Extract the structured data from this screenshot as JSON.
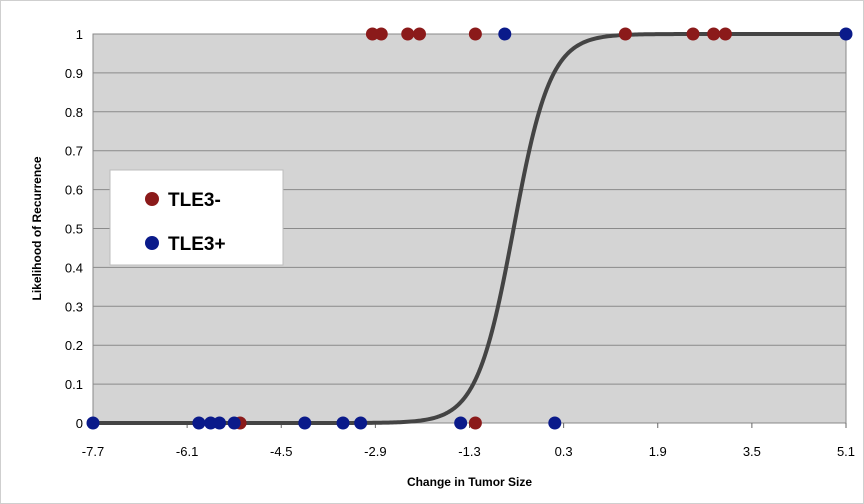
{
  "chart_data": {
    "type": "scatter",
    "xlabel": "Change in Tumor Size",
    "ylabel": "Likelihood of Recurrence",
    "xlim": [
      -7.7,
      5.1
    ],
    "ylim": [
      0,
      1
    ],
    "x_ticks": [
      "-7.7",
      "-6.1",
      "-4.5",
      "-2.9",
      "-1.3",
      "0.3",
      "1.9",
      "3.5",
      "5.1"
    ],
    "y_ticks": [
      "0",
      "0.1",
      "0.2",
      "0.3",
      "0.4",
      "0.5",
      "0.6",
      "0.7",
      "0.8",
      "0.9",
      "1"
    ],
    "grid": true,
    "legend_position": "middle-left",
    "background_color": "#d4d4d4",
    "series": [
      {
        "name": "TLE3-",
        "color": "#8b1a1a",
        "points": [
          {
            "x": -5.2,
            "y": 0
          },
          {
            "x": -1.2,
            "y": 0
          },
          {
            "x": -2.95,
            "y": 1
          },
          {
            "x": -2.8,
            "y": 1
          },
          {
            "x": -2.35,
            "y": 1
          },
          {
            "x": -2.15,
            "y": 1
          },
          {
            "x": -1.2,
            "y": 1
          },
          {
            "x": 1.35,
            "y": 1
          },
          {
            "x": 2.5,
            "y": 1
          },
          {
            "x": 2.85,
            "y": 1
          },
          {
            "x": 3.05,
            "y": 1
          }
        ]
      },
      {
        "name": "TLE3+",
        "color": "#0a1a8a",
        "points": [
          {
            "x": -7.7,
            "y": 0
          },
          {
            "x": -5.9,
            "y": 0
          },
          {
            "x": -5.7,
            "y": 0
          },
          {
            "x": -5.55,
            "y": 0
          },
          {
            "x": -5.3,
            "y": 0
          },
          {
            "x": -4.1,
            "y": 0
          },
          {
            "x": -3.45,
            "y": 0
          },
          {
            "x": -3.15,
            "y": 0
          },
          {
            "x": -1.45,
            "y": 0
          },
          {
            "x": 0.15,
            "y": 0
          },
          {
            "x": -0.7,
            "y": 1
          },
          {
            "x": 5.1,
            "y": 1
          }
        ]
      }
    ],
    "fit_curve": {
      "type": "logistic",
      "midpoint": -0.55,
      "slope": 3.2,
      "color": "#444444"
    }
  }
}
